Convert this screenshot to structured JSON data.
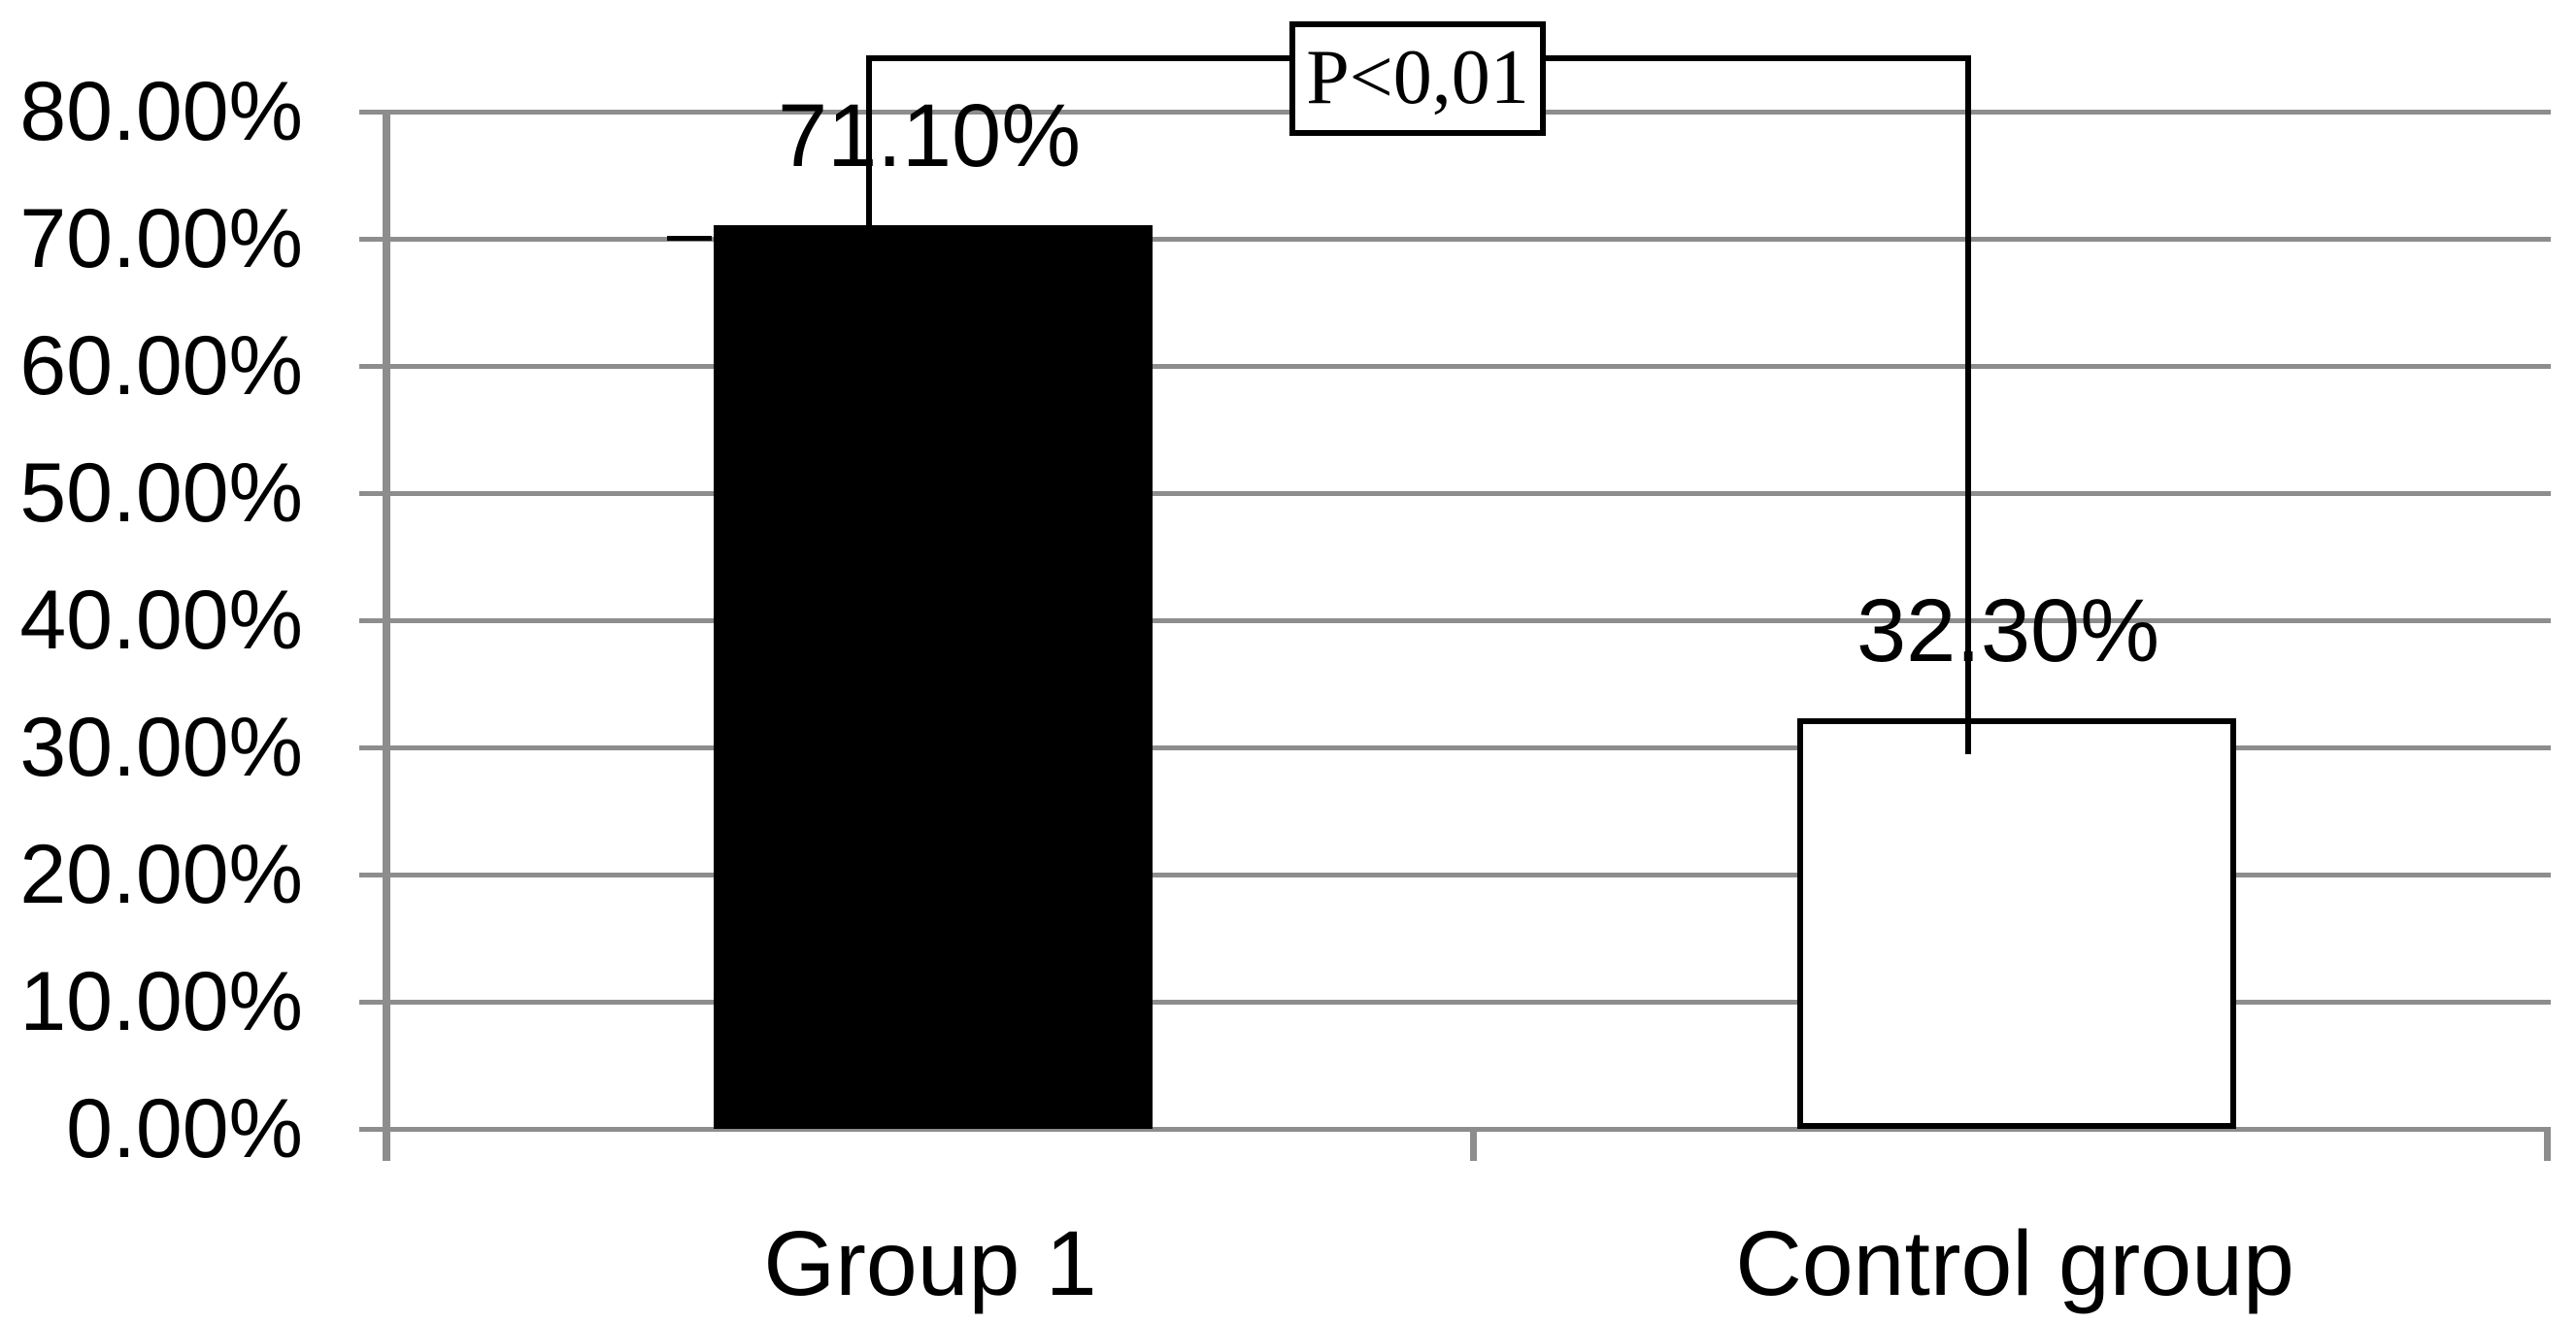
{
  "chart_data": {
    "type": "bar",
    "title": "",
    "xlabel": "",
    "ylabel": "",
    "categories": [
      "Group 1",
      "Control group"
    ],
    "values": [
      71.1,
      32.3
    ],
    "value_labels": [
      "71.10%",
      "32.30%"
    ],
    "bar_fill_colors": [
      "#000000",
      "#ffffff"
    ],
    "bar_border_color": "#000000",
    "ylim": [
      0,
      80
    ],
    "ytick_interval": 10,
    "ytick_labels_top_to_bottom": [
      "80.00%",
      "70.00%",
      "60.00%",
      "50.00%",
      "40.00%",
      "30.00%",
      "20.00%",
      "10.00%",
      "0.00%"
    ],
    "grid": true,
    "legend": "none",
    "colors": {
      "gridline": "#8d8d8d",
      "axis": "#8d8d8d",
      "text": "#000000",
      "background": "#ffffff"
    },
    "significance": {
      "label": "P<0,01",
      "between": [
        "Group 1",
        "Control group"
      ]
    }
  }
}
